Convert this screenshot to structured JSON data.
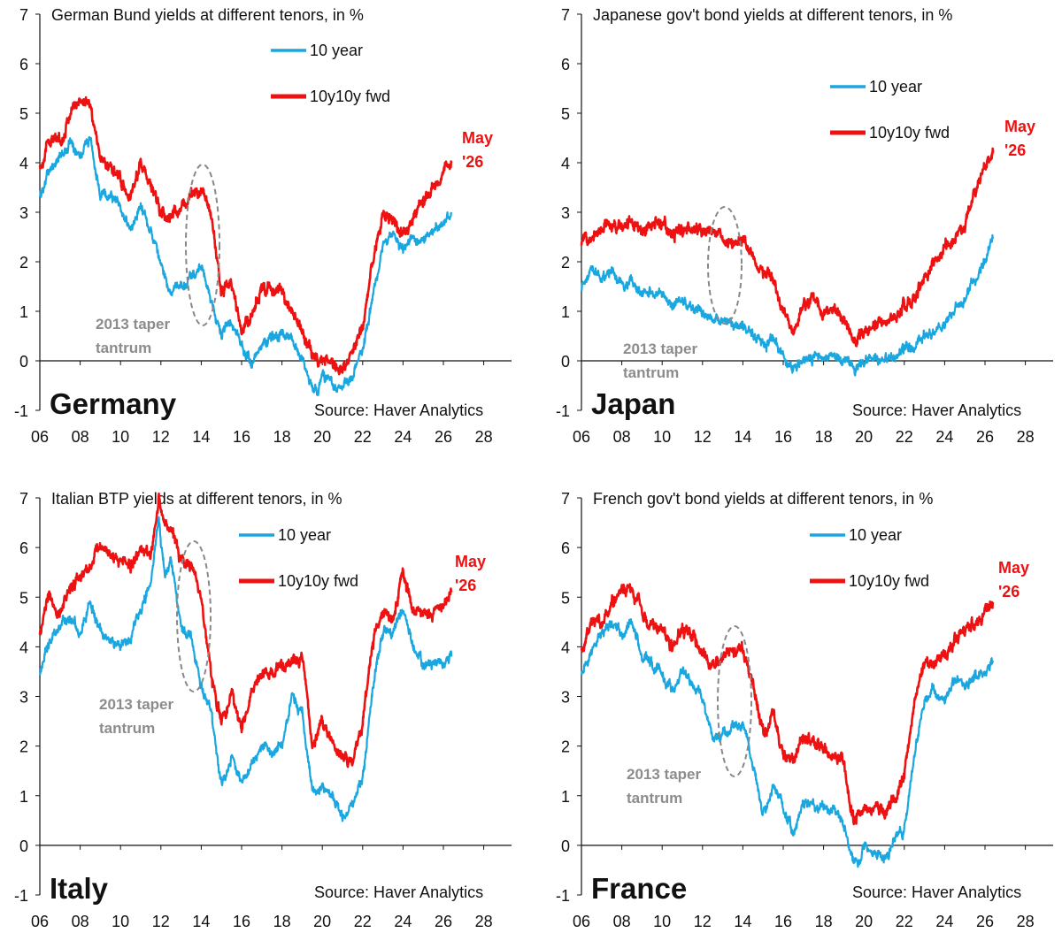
{
  "colors": {
    "ten_year": "#1aa7e0",
    "fwd": "#ee1111",
    "axis": "#111111",
    "annotation": "#8c8c8c",
    "oval": "#888888"
  },
  "chart_data": [
    {
      "type": "line",
      "panel": "Germany",
      "title": "German Bund yields at different tenors, in %",
      "country_label": "Germany",
      "source": "Source: Haver Analytics",
      "xlim": [
        2006,
        2028
      ],
      "ylim": [
        -1,
        7
      ],
      "x_ticks": [
        "06",
        "08",
        "10",
        "12",
        "14",
        "16",
        "18",
        "20",
        "22",
        "24",
        "26",
        "28"
      ],
      "y_ticks": [
        "-1",
        "0",
        "1",
        "2",
        "3",
        "4",
        "5",
        "6",
        "7"
      ],
      "legend": [
        "10 year",
        "10y10y fwd"
      ],
      "end_label": [
        "May",
        "'26"
      ],
      "annotation": [
        "2013 taper",
        "tantrum"
      ],
      "series": [
        {
          "name": "10 year",
          "x": [
            2006.0,
            2006.5,
            2007.0,
            2007.5,
            2008.0,
            2008.5,
            2009.0,
            2009.5,
            2010.0,
            2010.5,
            2011.0,
            2011.5,
            2012.0,
            2012.5,
            2013.0,
            2013.5,
            2014.0,
            2014.5,
            2015.0,
            2015.5,
            2016.0,
            2016.5,
            2017.0,
            2017.5,
            2018.0,
            2018.5,
            2019.0,
            2019.5,
            2019.8,
            2020.0,
            2020.5,
            2021.0,
            2021.5,
            2022.0,
            2022.5,
            2023.0,
            2023.5,
            2024.0,
            2024.5,
            2025.0,
            2025.5,
            2026.0,
            2026.4
          ],
          "y": [
            3.3,
            3.9,
            4.1,
            4.4,
            4.2,
            4.5,
            3.3,
            3.4,
            3.1,
            2.6,
            3.2,
            2.6,
            1.9,
            1.4,
            1.5,
            1.7,
            1.9,
            1.2,
            0.5,
            0.8,
            0.3,
            -0.1,
            0.3,
            0.5,
            0.6,
            0.4,
            0.1,
            -0.5,
            -0.7,
            -0.3,
            -0.5,
            -0.5,
            -0.3,
            0.2,
            1.3,
            2.3,
            2.5,
            2.2,
            2.5,
            2.4,
            2.6,
            2.8,
            3.0
          ]
        },
        {
          "name": "10y10y fwd",
          "x": [
            2006.0,
            2006.5,
            2007.0,
            2007.5,
            2008.0,
            2008.5,
            2009.0,
            2009.5,
            2010.0,
            2010.5,
            2011.0,
            2011.5,
            2012.0,
            2012.5,
            2013.0,
            2013.5,
            2014.0,
            2014.5,
            2015.0,
            2015.5,
            2016.0,
            2016.5,
            2017.0,
            2017.5,
            2018.0,
            2018.5,
            2019.0,
            2019.5,
            2020.0,
            2020.5,
            2021.0,
            2021.5,
            2022.0,
            2022.5,
            2023.0,
            2023.5,
            2024.0,
            2024.5,
            2025.0,
            2025.5,
            2026.0,
            2026.4
          ],
          "y": [
            3.9,
            4.5,
            4.4,
            5.0,
            5.3,
            5.2,
            4.1,
            3.9,
            3.7,
            3.3,
            4.0,
            3.5,
            3.0,
            2.9,
            3.1,
            3.3,
            3.5,
            2.9,
            1.4,
            1.6,
            0.6,
            0.9,
            1.5,
            1.4,
            1.4,
            1.0,
            0.6,
            0.1,
            0.0,
            -0.1,
            -0.2,
            0.1,
            0.7,
            2.0,
            3.0,
            2.8,
            2.5,
            2.9,
            3.3,
            3.5,
            3.8,
            4.0
          ]
        }
      ]
    },
    {
      "type": "line",
      "panel": "Japan",
      "title": "Japanese gov't bond yields at different tenors, in %",
      "country_label": "Japan",
      "source": "Source: Haver Analytics",
      "xlim": [
        2006,
        2028
      ],
      "ylim": [
        -1,
        7
      ],
      "x_ticks": [
        "06",
        "08",
        "10",
        "12",
        "14",
        "16",
        "18",
        "20",
        "22",
        "24",
        "26",
        "28"
      ],
      "y_ticks": [
        "-1",
        "0",
        "1",
        "2",
        "3",
        "4",
        "5",
        "6",
        "7"
      ],
      "legend": [
        "10 year",
        "10y10y fwd"
      ],
      "end_label": [
        "May",
        "'26"
      ],
      "annotation": [
        "2013 taper",
        "tantrum"
      ],
      "series": [
        {
          "name": "10 year",
          "x": [
            2006.0,
            2006.5,
            2007.0,
            2007.5,
            2008.0,
            2008.5,
            2009.0,
            2009.5,
            2010.0,
            2010.5,
            2011.0,
            2011.5,
            2012.0,
            2012.5,
            2013.0,
            2013.5,
            2014.0,
            2014.5,
            2015.0,
            2015.5,
            2016.0,
            2016.5,
            2017.0,
            2017.5,
            2018.0,
            2018.5,
            2019.0,
            2019.5,
            2020.0,
            2020.5,
            2021.0,
            2021.5,
            2022.0,
            2022.5,
            2023.0,
            2023.5,
            2024.0,
            2024.5,
            2025.0,
            2025.5,
            2026.0,
            2026.4
          ],
          "y": [
            1.5,
            1.9,
            1.7,
            1.8,
            1.5,
            1.6,
            1.3,
            1.4,
            1.3,
            1.1,
            1.2,
            1.1,
            1.0,
            0.8,
            0.8,
            0.8,
            0.6,
            0.5,
            0.4,
            0.4,
            0.1,
            -0.2,
            0.05,
            0.05,
            0.05,
            0.1,
            0.0,
            -0.2,
            0.0,
            0.05,
            0.1,
            0.05,
            0.2,
            0.25,
            0.45,
            0.6,
            0.7,
            1.0,
            1.3,
            1.6,
            2.0,
            2.5
          ]
        },
        {
          "name": "10y10y fwd",
          "x": [
            2006.0,
            2006.5,
            2007.0,
            2007.5,
            2008.0,
            2008.5,
            2009.0,
            2009.5,
            2010.0,
            2010.5,
            2011.0,
            2011.5,
            2012.0,
            2012.5,
            2013.0,
            2013.5,
            2014.0,
            2014.5,
            2015.0,
            2015.5,
            2016.0,
            2016.5,
            2017.0,
            2017.5,
            2018.0,
            2018.5,
            2019.0,
            2019.5,
            2020.0,
            2020.5,
            2021.0,
            2021.5,
            2022.0,
            2022.5,
            2023.0,
            2023.5,
            2024.0,
            2024.5,
            2025.0,
            2025.5,
            2026.0,
            2026.4
          ],
          "y": [
            2.4,
            2.6,
            2.7,
            2.8,
            2.7,
            2.8,
            2.6,
            2.7,
            2.8,
            2.5,
            2.7,
            2.6,
            2.6,
            2.6,
            2.5,
            2.3,
            2.5,
            2.2,
            1.8,
            1.6,
            1.0,
            0.5,
            1.1,
            1.2,
            1.0,
            1.1,
            0.8,
            0.4,
            0.6,
            0.7,
            0.8,
            0.8,
            1.1,
            1.3,
            1.7,
            2.0,
            2.3,
            2.5,
            2.7,
            3.4,
            3.9,
            4.2
          ]
        }
      ]
    },
    {
      "type": "line",
      "panel": "Italy",
      "title": "Italian BTP yields at different tenors, in %",
      "country_label": "Italy",
      "source": "Source: Haver Analytics",
      "xlim": [
        2006,
        2028
      ],
      "ylim": [
        -1,
        7
      ],
      "x_ticks": [
        "06",
        "08",
        "10",
        "12",
        "14",
        "16",
        "18",
        "20",
        "22",
        "24",
        "26",
        "28"
      ],
      "y_ticks": [
        "-1",
        "0",
        "1",
        "2",
        "3",
        "4",
        "5",
        "6",
        "7"
      ],
      "legend": [
        "10 year",
        "10y10y fwd"
      ],
      "end_label": [
        "May",
        "'26"
      ],
      "annotation": [
        "2013 taper",
        "tantrum"
      ],
      "series": [
        {
          "name": "10 year",
          "x": [
            2006.0,
            2006.5,
            2007.0,
            2007.5,
            2008.0,
            2008.5,
            2009.0,
            2009.5,
            2010.0,
            2010.5,
            2011.0,
            2011.5,
            2011.9,
            2012.2,
            2012.5,
            2013.0,
            2013.5,
            2014.0,
            2014.5,
            2015.0,
            2015.5,
            2016.0,
            2016.5,
            2017.0,
            2017.5,
            2018.0,
            2018.5,
            2019.0,
            2019.5,
            2020.0,
            2020.5,
            2021.0,
            2021.5,
            2022.0,
            2022.5,
            2023.0,
            2023.5,
            2024.0,
            2024.5,
            2025.0,
            2025.5,
            2026.0,
            2026.4
          ],
          "y": [
            3.5,
            4.1,
            4.4,
            4.6,
            4.3,
            4.9,
            4.3,
            4.1,
            4.0,
            4.2,
            4.8,
            5.3,
            6.6,
            5.3,
            5.8,
            4.4,
            4.2,
            3.2,
            2.6,
            1.2,
            1.8,
            1.3,
            1.6,
            2.1,
            1.9,
            2.0,
            3.0,
            2.6,
            1.0,
            1.2,
            1.0,
            0.6,
            0.8,
            1.3,
            3.2,
            4.3,
            4.3,
            4.8,
            4.0,
            3.6,
            3.7,
            3.6,
            3.8
          ]
        },
        {
          "name": "10y10y fwd",
          "x": [
            2006.0,
            2006.5,
            2007.0,
            2007.5,
            2008.0,
            2008.5,
            2009.0,
            2009.5,
            2010.0,
            2010.5,
            2011.0,
            2011.5,
            2011.9,
            2012.2,
            2012.5,
            2013.0,
            2013.5,
            2014.0,
            2014.5,
            2015.0,
            2015.5,
            2016.0,
            2016.5,
            2017.0,
            2017.5,
            2018.0,
            2018.5,
            2019.0,
            2019.5,
            2020.0,
            2020.5,
            2021.0,
            2021.5,
            2022.0,
            2022.5,
            2023.0,
            2023.5,
            2024.0,
            2024.5,
            2025.0,
            2025.5,
            2026.0,
            2026.4
          ],
          "y": [
            4.3,
            5.0,
            4.7,
            5.2,
            5.3,
            5.6,
            6.1,
            5.8,
            5.7,
            5.6,
            6.0,
            5.8,
            7.0,
            6.4,
            6.4,
            5.8,
            5.6,
            5.0,
            3.4,
            2.5,
            3.0,
            2.4,
            3.0,
            3.5,
            3.5,
            3.6,
            3.7,
            3.8,
            2.0,
            2.5,
            2.0,
            1.8,
            1.7,
            2.5,
            4.0,
            4.7,
            4.6,
            5.5,
            4.7,
            4.6,
            4.7,
            4.8,
            5.1
          ]
        }
      ]
    },
    {
      "type": "line",
      "panel": "France",
      "title": "French gov't bond yields at different tenors, in %",
      "country_label": "France",
      "source": "Source: Haver Analytics",
      "xlim": [
        2006,
        2028
      ],
      "ylim": [
        -1,
        7
      ],
      "x_ticks": [
        "06",
        "08",
        "10",
        "12",
        "14",
        "16",
        "18",
        "20",
        "22",
        "24",
        "26",
        "28"
      ],
      "y_ticks": [
        "-1",
        "0",
        "1",
        "2",
        "3",
        "4",
        "5",
        "6",
        "7"
      ],
      "legend": [
        "10 year",
        "10y10y fwd"
      ],
      "end_label": [
        "May",
        "'26"
      ],
      "annotation": [
        "2013 taper",
        "tantrum"
      ],
      "series": [
        {
          "name": "10 year",
          "x": [
            2006.0,
            2006.5,
            2007.0,
            2007.5,
            2008.0,
            2008.5,
            2009.0,
            2009.5,
            2010.0,
            2010.5,
            2011.0,
            2011.5,
            2012.0,
            2012.5,
            2013.0,
            2013.5,
            2014.0,
            2014.5,
            2015.0,
            2015.5,
            2016.0,
            2016.5,
            2017.0,
            2017.5,
            2018.0,
            2018.5,
            2019.0,
            2019.5,
            2019.8,
            2020.0,
            2020.5,
            2021.0,
            2021.5,
            2022.0,
            2022.5,
            2023.0,
            2023.5,
            2024.0,
            2024.5,
            2025.0,
            2025.5,
            2026.0,
            2026.4
          ],
          "y": [
            3.4,
            3.9,
            4.2,
            4.5,
            4.2,
            4.6,
            3.8,
            3.7,
            3.4,
            3.1,
            3.6,
            3.2,
            3.0,
            2.2,
            2.2,
            2.4,
            2.5,
            1.6,
            0.6,
            1.2,
            0.8,
            0.2,
            0.9,
            0.8,
            0.8,
            0.7,
            0.4,
            -0.3,
            -0.4,
            0.0,
            -0.1,
            -0.3,
            0.1,
            0.3,
            1.8,
            2.9,
            3.1,
            2.9,
            3.3,
            3.2,
            3.4,
            3.5,
            3.7
          ]
        },
        {
          "name": "10y10y fwd",
          "x": [
            2006.0,
            2006.5,
            2007.0,
            2007.5,
            2008.0,
            2008.5,
            2009.0,
            2009.5,
            2010.0,
            2010.5,
            2011.0,
            2011.5,
            2012.0,
            2012.5,
            2013.0,
            2013.5,
            2014.0,
            2014.5,
            2015.0,
            2015.5,
            2016.0,
            2016.5,
            2017.0,
            2017.5,
            2018.0,
            2018.5,
            2019.0,
            2019.5,
            2020.0,
            2020.5,
            2021.0,
            2021.5,
            2022.0,
            2022.5,
            2023.0,
            2023.5,
            2024.0,
            2024.5,
            2025.0,
            2025.5,
            2026.0,
            2026.4
          ],
          "y": [
            3.9,
            4.5,
            4.4,
            4.9,
            5.2,
            5.2,
            4.7,
            4.4,
            4.4,
            4.0,
            4.4,
            4.2,
            3.9,
            3.6,
            3.8,
            3.9,
            4.0,
            3.3,
            2.2,
            2.6,
            1.8,
            1.7,
            2.2,
            2.0,
            1.9,
            1.8,
            1.6,
            0.5,
            0.7,
            0.8,
            0.6,
            0.9,
            1.4,
            2.8,
            3.6,
            3.7,
            3.8,
            4.1,
            4.3,
            4.5,
            4.7,
            4.9
          ]
        }
      ]
    }
  ]
}
